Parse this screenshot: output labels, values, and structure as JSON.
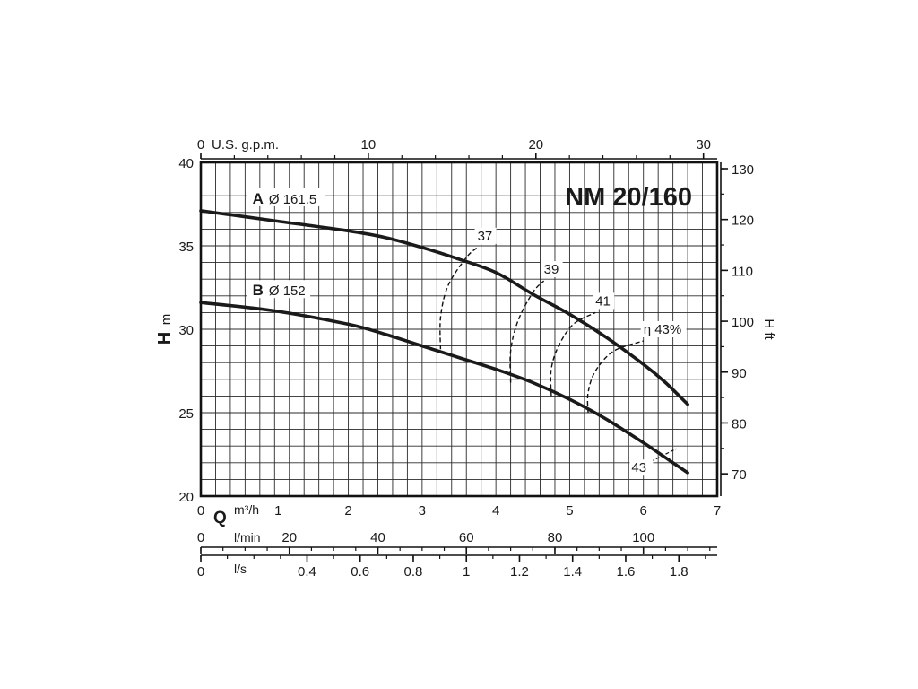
{
  "chart_data": {
    "type": "line",
    "title": "NM 20/160",
    "ylabel": "H",
    "ylabel_unit": "m",
    "ylabel_right": "H ft",
    "xlabel": "Q",
    "xlabel_unit": "m³/h",
    "xlim": [
      0,
      7
    ],
    "ylim": [
      20,
      40
    ],
    "grid": true,
    "axes": {
      "x_m3h": {
        "label": "m³/h",
        "ticks": [
          "0",
          "1",
          "2",
          "3",
          "4",
          "5",
          "6",
          "7"
        ],
        "values": [
          0,
          1,
          2,
          3,
          4,
          5,
          6,
          7
        ]
      },
      "x_lmin": {
        "label": "l/min",
        "ticks": [
          "0",
          "20",
          "40",
          "60",
          "80",
          "100"
        ],
        "values": [
          0,
          20,
          40,
          60,
          80,
          100
        ]
      },
      "x_ls": {
        "label": "l/s",
        "ticks": [
          "0",
          "0.4",
          "0.6",
          "0.8",
          "1",
          "1.2",
          "1.4",
          "1.6",
          "1.8"
        ],
        "values": [
          0,
          0.4,
          0.6,
          0.8,
          1,
          1.2,
          1.4,
          1.6,
          1.8
        ]
      },
      "x_usgpm": {
        "label": "U.S. g.p.m.",
        "ticks": [
          "0",
          "10",
          "20",
          "30"
        ],
        "values": [
          0,
          10,
          20,
          30
        ]
      },
      "y_m": {
        "ticks": [
          "20",
          "25",
          "30",
          "35",
          "40"
        ],
        "values": [
          20,
          25,
          30,
          35,
          40
        ]
      },
      "y_ft": {
        "ticks": [
          "70",
          "80",
          "90",
          "100",
          "110",
          "120",
          "130"
        ],
        "values": [
          70,
          80,
          90,
          100,
          110,
          120,
          130
        ]
      }
    },
    "series": [
      {
        "name": "A",
        "diameter": "Ø 161.5",
        "x": [
          0,
          1,
          2,
          2.5,
          3,
          3.5,
          4,
          4.5,
          5,
          5.5,
          6,
          6.3,
          6.6
        ],
        "y": [
          37.1,
          36.5,
          35.9,
          35.5,
          34.9,
          34.2,
          33.4,
          32.1,
          30.9,
          29.5,
          27.9,
          26.8,
          25.5
        ]
      },
      {
        "name": "B",
        "diameter": "Ø 152",
        "x": [
          0,
          1,
          2,
          2.5,
          3,
          3.5,
          4,
          4.5,
          5,
          5.5,
          6,
          6.3,
          6.6
        ],
        "y": [
          31.6,
          31.1,
          30.3,
          29.7,
          29.0,
          28.3,
          27.6,
          26.8,
          25.8,
          24.6,
          23.2,
          22.3,
          21.4
        ]
      }
    ],
    "efficiency_curves": [
      {
        "label": "37",
        "x": [
          3.25,
          3.25,
          3.35,
          3.6,
          3.75
        ],
        "y": [
          28.8,
          30.7,
          32.6,
          34.3,
          34.9
        ]
      },
      {
        "label": "39",
        "x": [
          4.2,
          4.2,
          4.3,
          4.5,
          4.65
        ],
        "y": [
          26.8,
          28.7,
          30.5,
          32.2,
          32.9
        ]
      },
      {
        "label": "41",
        "x": [
          4.75,
          4.75,
          4.85,
          5.05,
          5.35
        ],
        "y": [
          26.0,
          27.6,
          29.0,
          30.3,
          31.0
        ]
      },
      {
        "label": "η 43%",
        "x": [
          5.25,
          5.25,
          5.35,
          5.6,
          6.0
        ],
        "y": [
          25.0,
          26.2,
          27.5,
          28.7,
          29.3
        ]
      }
    ],
    "annotations": [
      {
        "text": "43",
        "x": 6.3,
        "y": 22.3
      }
    ]
  }
}
